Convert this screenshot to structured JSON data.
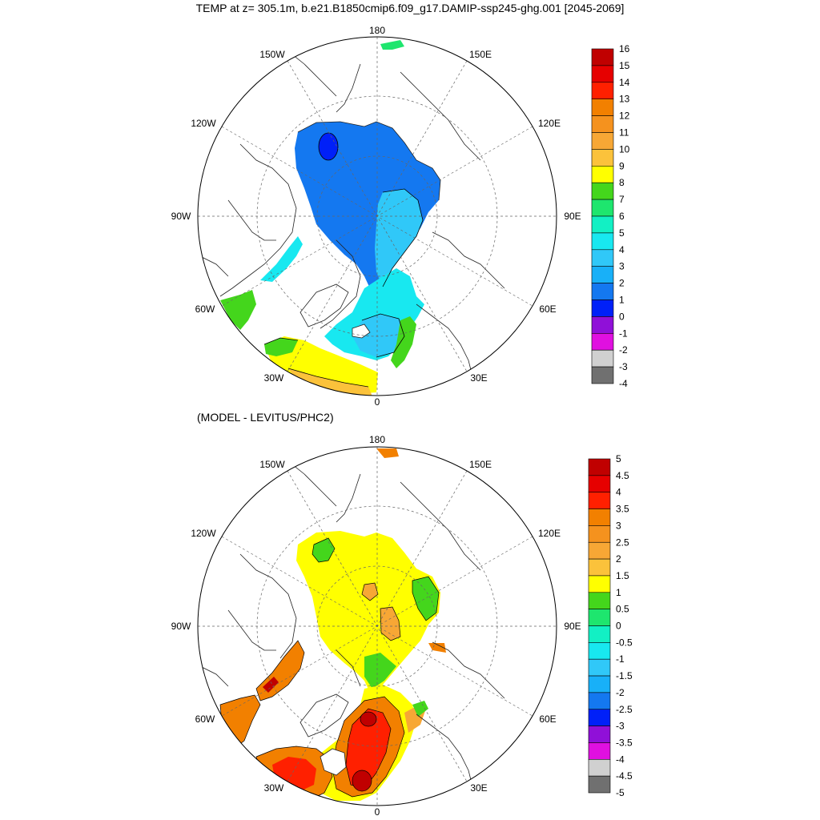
{
  "title": "TEMP at z= 305.1m, b.e21.B1850cmip6.f09_g17.DAMIP-ssp245-ghg.001 [2045-2069]",
  "subtitle": "(MODEL - LEVITUS/PHC2)",
  "map_labels": [
    "180",
    "150E",
    "120E",
    "90E",
    "60E",
    "30E",
    "0",
    "30W",
    "60W",
    "90W",
    "120W",
    "150W"
  ],
  "top_colorbar": {
    "labels": [
      "16",
      "15",
      "14",
      "13",
      "12",
      "11",
      "10",
      "9",
      "8",
      "7",
      "6",
      "5",
      "4",
      "3",
      "2",
      "1",
      "0",
      "-1",
      "-2",
      "-3",
      "-4"
    ],
    "colors": [
      "#c00000",
      "#e60000",
      "#ff2000",
      "#f28000",
      "#f5921e",
      "#f7a735",
      "#fbc23b",
      "#ffff00",
      "#44d61c",
      "#1ee66e",
      "#12f0c4",
      "#18e8f0",
      "#30c8f8",
      "#18b0f8",
      "#1478f0",
      "#0020f8",
      "#9010d8",
      "#e010e0",
      "#d0d0d0",
      "#707070"
    ]
  },
  "bottom_colorbar": {
    "labels": [
      "5",
      "4.5",
      "4",
      "3.5",
      "3",
      "2.5",
      "2",
      "1.5",
      "1",
      "0.5",
      "0",
      "-0.5",
      "-1",
      "-1.5",
      "-2",
      "-2.5",
      "-3",
      "-3.5",
      "-4",
      "-4.5",
      "-5"
    ],
    "colors": [
      "#c00000",
      "#e60000",
      "#ff2000",
      "#f28000",
      "#f5921e",
      "#f7a735",
      "#fbc23b",
      "#ffff00",
      "#44d61c",
      "#1ee66e",
      "#12f0c4",
      "#18e8f0",
      "#30c8f8",
      "#18b0f8",
      "#1478f0",
      "#0020f8",
      "#9010d8",
      "#e010e0",
      "#d0d0d0",
      "#707070"
    ]
  }
}
